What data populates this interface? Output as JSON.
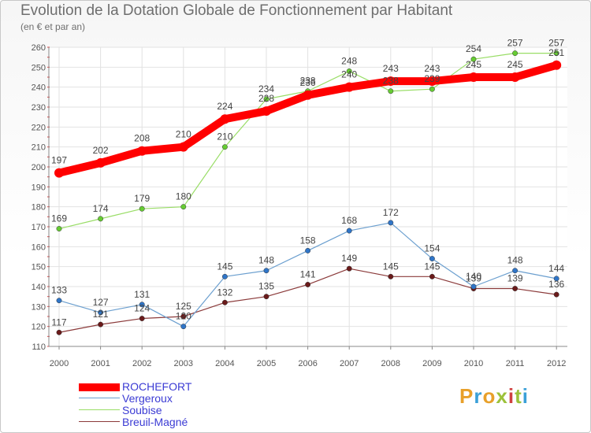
{
  "header": {
    "title": "Evolution de la Dotation Globale de Fonctionnement par Habitant",
    "subtitle": "(en € et par an)"
  },
  "brand": {
    "logo_text": "Proxiti",
    "colors": [
      "#e8a02a",
      "#3aa0d8",
      "#e8a02a",
      "#9cc23a",
      "#d04040",
      "#9cc23a",
      "#3aa0d8"
    ]
  },
  "chart_data": {
    "type": "line",
    "title": "Evolution de la Dotation Globale de Fonctionnement par Habitant",
    "subtitle": "(en € et par an)",
    "x": [
      "2000",
      "2001",
      "2002",
      "2003",
      "2004",
      "2005",
      "2006",
      "2007",
      "2008",
      "2009",
      "2010",
      "2011",
      "2012"
    ],
    "ylim": [
      110,
      260
    ],
    "yticks": [
      110,
      120,
      130,
      140,
      150,
      160,
      170,
      180,
      190,
      200,
      210,
      220,
      230,
      240,
      250,
      260
    ],
    "grid": true,
    "legend_position": "bottom-left",
    "series": [
      {
        "name": "ROCHEFORT",
        "color": "#ff0000",
        "marker": "#ff0000",
        "emphasis": true,
        "values": [
          197,
          202,
          208,
          210,
          224,
          228,
          236,
          240,
          243,
          243,
          245,
          245,
          251
        ],
        "labels": [
          "197",
          "202",
          "208",
          "210",
          "224",
          "228",
          "236",
          "240",
          "243",
          "243",
          "245",
          "245",
          "251"
        ]
      },
      {
        "name": "Vergeroux",
        "color": "#6b9fcf",
        "marker": "#2f75c8",
        "emphasis": false,
        "values": [
          133,
          127,
          131,
          120,
          145,
          148,
          158,
          168,
          172,
          154,
          140,
          148,
          144
        ],
        "labels": [
          "133",
          "127",
          "131",
          "120",
          "145",
          "148",
          "158",
          "168",
          "172",
          "154",
          "140",
          "148",
          "144"
        ]
      },
      {
        "name": "Soubise",
        "color": "#99dd66",
        "marker": "#66cc33",
        "emphasis": false,
        "values": [
          169,
          174,
          179,
          180,
          210,
          234,
          238,
          248,
          238,
          239,
          254,
          257,
          257
        ],
        "labels": [
          "169",
          "174",
          "179",
          "180",
          "210",
          "234",
          "238",
          "248",
          "238",
          "239",
          "254",
          "257",
          "257"
        ]
      },
      {
        "name": "Breuil-Magné",
        "color": "#8b3a3a",
        "marker": "#6a1a1a",
        "emphasis": false,
        "values": [
          117,
          121,
          124,
          125,
          132,
          135,
          141,
          149,
          145,
          145,
          139,
          139,
          136
        ],
        "labels": [
          "117",
          "121",
          "124",
          "125",
          "132",
          "135",
          "141",
          "149",
          "145",
          "145",
          "139",
          "139",
          "136"
        ]
      }
    ]
  }
}
